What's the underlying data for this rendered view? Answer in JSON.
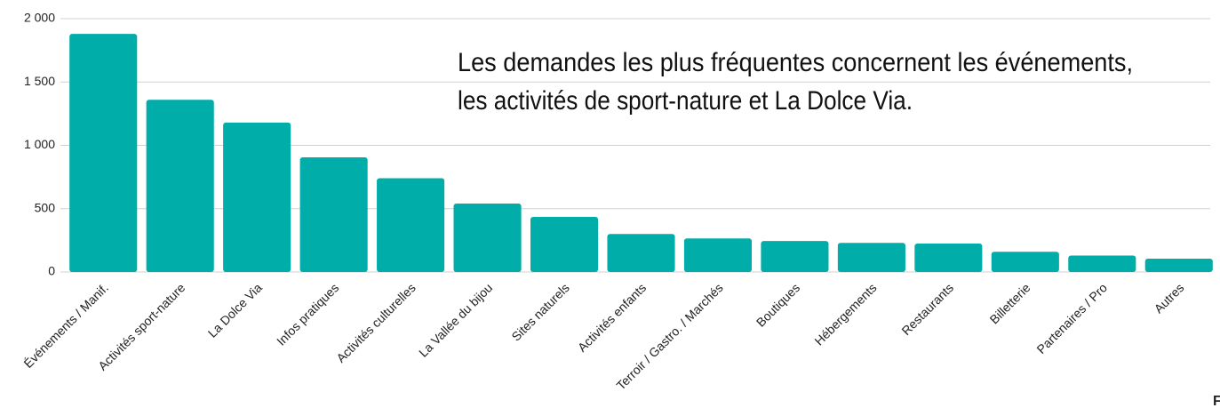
{
  "chart_data": {
    "type": "bar",
    "annotation": [
      "Les demandes les plus fréquentes concernent les événements,",
      "les activités de sport-nature et La Dolce Via."
    ],
    "categories": [
      "Événements / Manif.",
      "Activités sport-nature",
      "La Dolce Via",
      "Infos pratiques",
      "Activités culturelles",
      "La Vallée du bijou",
      "Sites naturels",
      "Activités enfants",
      "Terroir / Gastro. / Marchés",
      "Boutiques",
      "Hébergements",
      "Restaurants",
      "Billetterie",
      "Partenaires / Pro",
      "Autres"
    ],
    "values": [
      1880,
      1360,
      1180,
      905,
      740,
      540,
      435,
      300,
      265,
      245,
      230,
      225,
      160,
      130,
      105
    ],
    "color": "#00ada8",
    "ylim": [
      0,
      2000
    ],
    "yticks": [
      0,
      500,
      {
        "value": 1000,
        "label": "1 000"
      },
      {
        "value": 1500,
        "label": "1 500"
      },
      {
        "value": 2000,
        "label": "2 000"
      }
    ],
    "grid": true
  },
  "footer": "F"
}
